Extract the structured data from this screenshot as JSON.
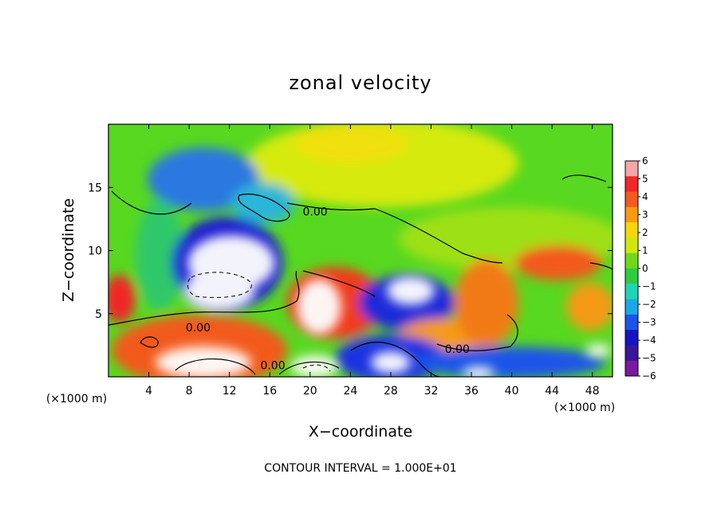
{
  "chart_data": {
    "type": "heatmap",
    "title": "zonal velocity",
    "xlabel": "X−coordinate",
    "ylabel": "Z−coordinate",
    "x_units": "(×1000 m)",
    "y_units": "(×1000 m)",
    "xlim": [
      0,
      50
    ],
    "ylim": [
      0,
      20
    ],
    "x_ticks": [
      4,
      8,
      12,
      16,
      20,
      24,
      28,
      32,
      36,
      40,
      44,
      48
    ],
    "y_ticks": [
      5,
      10,
      15
    ],
    "colorbar": {
      "ticks": [
        6,
        5,
        4,
        3,
        2,
        1,
        0,
        -1,
        -2,
        -3,
        -4,
        -5,
        -6
      ],
      "colors": [
        "#f4a7a7",
        "#f02828",
        "#f25a1e",
        "#f79a12",
        "#f5d80c",
        "#cfe80c",
        "#6fd81a",
        "#2ecd3f",
        "#22d4b6",
        "#1ca8e8",
        "#1b55e8",
        "#1515c4",
        "#3a1699",
        "#7a1a9e"
      ]
    },
    "contour_labels": [
      {
        "text": "0.00",
        "x": 20.5,
        "y": 13.1
      },
      {
        "text": "0.00",
        "x": 8.9,
        "y": 3.9
      },
      {
        "text": "0.00",
        "x": 16.3,
        "y": 0.9
      },
      {
        "text": "0.00",
        "x": 34.6,
        "y": 2.2
      }
    ],
    "footer": "CONTOUR INTERVAL = 1.000E+01"
  }
}
